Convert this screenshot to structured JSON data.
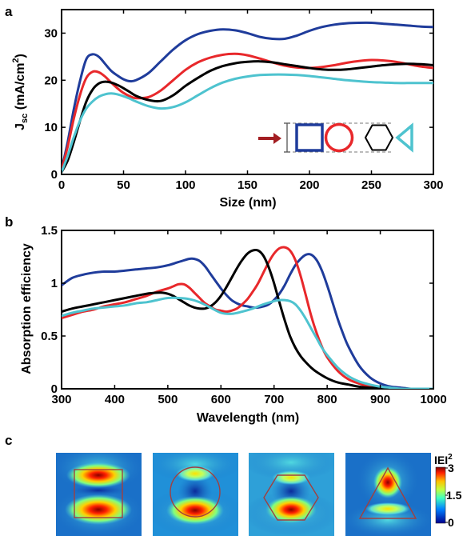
{
  "panel_labels": [
    "a",
    "b",
    "c"
  ],
  "colors": {
    "square": "#1f3c9b",
    "circle": "#e8282b",
    "hexagon": "#000000",
    "triangle": "#4ec3cf",
    "arrow": "#a31e22"
  },
  "chart_data": [
    {
      "panel": "a",
      "type": "line",
      "xlabel": "Size  (nm)",
      "ylabel_main": "J",
      "ylabel_sub": "sc",
      "ylabel_rest": " (mA/cm",
      "ylabel_sup": "2",
      "ylabel_close": ")",
      "xlim": [
        0,
        300
      ],
      "ylim": [
        0,
        35
      ],
      "xticks": [
        "0",
        "50",
        "100",
        "150",
        "200",
        "250",
        "300"
      ],
      "yticks": [
        "0",
        "10",
        "20",
        "30"
      ],
      "grid": false,
      "legend": "inset bottom-right: shape icons (square, circle, hexagon, triangle) with red arrow",
      "series": [
        {
          "shape": "square",
          "color": "#1f3c9b",
          "x": [
            0,
            5,
            10,
            15,
            20,
            25,
            30,
            35,
            40,
            45,
            50,
            55,
            60,
            70,
            80,
            90,
            100,
            110,
            120,
            130,
            140,
            150,
            160,
            170,
            180,
            190,
            200,
            210,
            220,
            230,
            240,
            250,
            260,
            270,
            280,
            290,
            300
          ],
          "y": [
            1,
            7,
            14,
            20,
            24.5,
            25.5,
            25,
            23.5,
            22,
            21,
            20.2,
            19.8,
            20,
            21.5,
            24,
            26.5,
            28.5,
            29.8,
            30.5,
            30.8,
            30.6,
            30,
            29.2,
            28.8,
            28.8,
            29.5,
            30.5,
            31.3,
            31.8,
            32.1,
            32.2,
            32.2,
            32,
            31.8,
            31.6,
            31.4,
            31.3
          ]
        },
        {
          "shape": "circle",
          "color": "#e8282b",
          "x": [
            0,
            5,
            10,
            15,
            20,
            25,
            30,
            35,
            40,
            45,
            50,
            55,
            60,
            70,
            80,
            90,
            100,
            110,
            120,
            130,
            140,
            150,
            160,
            170,
            180,
            190,
            200,
            210,
            220,
            230,
            240,
            250,
            260,
            270,
            280,
            290,
            300
          ],
          "y": [
            1,
            6,
            12,
            17,
            20.5,
            21.8,
            21.7,
            20.8,
            19.5,
            18.3,
            17.3,
            16.6,
            16.2,
            16.4,
            17.8,
            20,
            22.2,
            23.8,
            24.8,
            25.4,
            25.6,
            25.3,
            24.6,
            23.8,
            23.1,
            22.7,
            22.6,
            22.8,
            23.2,
            23.7,
            24.1,
            24.3,
            24.2,
            23.9,
            23.4,
            22.9,
            22.6
          ]
        },
        {
          "shape": "hexagon",
          "color": "#000000",
          "x": [
            0,
            5,
            10,
            15,
            20,
            25,
            30,
            35,
            40,
            45,
            50,
            55,
            60,
            70,
            80,
            90,
            100,
            110,
            120,
            130,
            140,
            150,
            160,
            170,
            180,
            190,
            200,
            210,
            220,
            230,
            240,
            250,
            260,
            270,
            280,
            290,
            300
          ],
          "y": [
            0.5,
            3,
            7,
            11.5,
            15.5,
            18,
            19.3,
            19.7,
            19.5,
            19,
            18.3,
            17.5,
            16.7,
            15.8,
            15.6,
            16.8,
            18.8,
            20.5,
            22,
            23,
            23.6,
            23.9,
            24,
            23.8,
            23.4,
            23,
            22.6,
            22.3,
            22.2,
            22.3,
            22.6,
            22.9,
            23.2,
            23.4,
            23.5,
            23.4,
            23.2
          ]
        },
        {
          "shape": "triangle",
          "color": "#4ec3cf",
          "x": [
            0,
            5,
            10,
            15,
            20,
            25,
            30,
            35,
            40,
            45,
            50,
            55,
            60,
            70,
            80,
            90,
            100,
            110,
            120,
            130,
            140,
            150,
            160,
            170,
            180,
            190,
            200,
            210,
            220,
            230,
            240,
            250,
            260,
            270,
            280,
            290,
            300
          ],
          "y": [
            0.5,
            4,
            8,
            11.5,
            14,
            15.5,
            16.5,
            17,
            17.2,
            17,
            16.6,
            16.1,
            15.5,
            14.5,
            14,
            14.3,
            15.3,
            16.8,
            18.3,
            19.5,
            20.3,
            20.8,
            21.1,
            21.2,
            21.2,
            21.1,
            20.9,
            20.6,
            20.3,
            20,
            19.8,
            19.6,
            19.5,
            19.4,
            19.4,
            19.4,
            19.4
          ]
        }
      ]
    },
    {
      "panel": "b",
      "type": "line",
      "xlabel": "Wavelength  (nm)",
      "ylabel": "Absorption efficiency",
      "xlim": [
        300,
        1000
      ],
      "ylim": [
        0,
        1.5
      ],
      "xticks": [
        "300",
        "400",
        "500",
        "600",
        "700",
        "800",
        "900",
        "1000"
      ],
      "yticks": [
        "0",
        "0.5",
        "1",
        "1.5"
      ],
      "grid": false,
      "series": [
        {
          "shape": "square",
          "color": "#1f3c9b",
          "x": [
            300,
            320,
            340,
            360,
            380,
            400,
            420,
            440,
            460,
            480,
            500,
            520,
            540,
            550,
            560,
            570,
            580,
            590,
            600,
            610,
            620,
            630,
            640,
            650,
            660,
            670,
            680,
            690,
            700,
            710,
            720,
            730,
            740,
            750,
            760,
            770,
            780,
            790,
            800,
            810,
            820,
            830,
            840,
            860,
            880,
            900,
            920,
            940,
            960,
            980,
            1000
          ],
          "y": [
            0.98,
            1.05,
            1.08,
            1.1,
            1.11,
            1.11,
            1.12,
            1.13,
            1.14,
            1.15,
            1.17,
            1.2,
            1.23,
            1.23,
            1.21,
            1.16,
            1.09,
            1.02,
            0.95,
            0.89,
            0.84,
            0.81,
            0.79,
            0.78,
            0.77,
            0.77,
            0.78,
            0.8,
            0.84,
            0.9,
            0.98,
            1.08,
            1.17,
            1.23,
            1.27,
            1.27,
            1.22,
            1.12,
            0.98,
            0.82,
            0.66,
            0.52,
            0.4,
            0.22,
            0.11,
            0.05,
            0.02,
            0.01,
            0,
            0,
            0
          ]
        },
        {
          "shape": "circle",
          "color": "#e8282b",
          "x": [
            300,
            320,
            340,
            360,
            380,
            400,
            420,
            440,
            460,
            480,
            500,
            510,
            520,
            530,
            540,
            550,
            560,
            570,
            580,
            590,
            600,
            610,
            620,
            630,
            640,
            650,
            660,
            670,
            680,
            690,
            700,
            710,
            720,
            730,
            740,
            750,
            760,
            770,
            780,
            790,
            800,
            820,
            840,
            860,
            880,
            900,
            920,
            940,
            960,
            1000
          ],
          "y": [
            0.67,
            0.7,
            0.73,
            0.75,
            0.78,
            0.8,
            0.82,
            0.85,
            0.88,
            0.92,
            0.95,
            0.97,
            0.99,
            0.99,
            0.96,
            0.91,
            0.86,
            0.81,
            0.78,
            0.75,
            0.74,
            0.73,
            0.74,
            0.76,
            0.8,
            0.85,
            0.92,
            1,
            1.1,
            1.2,
            1.28,
            1.33,
            1.34,
            1.31,
            1.22,
            1.07,
            0.88,
            0.69,
            0.53,
            0.4,
            0.3,
            0.17,
            0.09,
            0.05,
            0.02,
            0.01,
            0,
            0,
            0,
            0
          ]
        },
        {
          "shape": "hexagon",
          "color": "#000000",
          "x": [
            300,
            320,
            340,
            360,
            380,
            400,
            420,
            440,
            460,
            480,
            490,
            500,
            510,
            520,
            530,
            540,
            550,
            560,
            570,
            580,
            590,
            600,
            610,
            620,
            630,
            640,
            650,
            660,
            670,
            680,
            690,
            700,
            710,
            720,
            730,
            740,
            750,
            760,
            770,
            780,
            800,
            820,
            840,
            860,
            880,
            900,
            920,
            960,
            1000
          ],
          "y": [
            0.73,
            0.76,
            0.78,
            0.8,
            0.82,
            0.84,
            0.86,
            0.88,
            0.9,
            0.91,
            0.91,
            0.9,
            0.88,
            0.85,
            0.82,
            0.79,
            0.77,
            0.76,
            0.76,
            0.78,
            0.82,
            0.88,
            0.96,
            1.05,
            1.14,
            1.22,
            1.28,
            1.31,
            1.31,
            1.26,
            1.15,
            1,
            0.82,
            0.65,
            0.5,
            0.39,
            0.31,
            0.25,
            0.2,
            0.16,
            0.1,
            0.06,
            0.04,
            0.02,
            0.01,
            0.01,
            0,
            0,
            0
          ]
        },
        {
          "shape": "triangle",
          "color": "#4ec3cf",
          "x": [
            300,
            320,
            340,
            360,
            380,
            400,
            420,
            440,
            460,
            480,
            500,
            520,
            540,
            560,
            580,
            600,
            620,
            640,
            660,
            680,
            700,
            710,
            720,
            730,
            740,
            750,
            760,
            770,
            780,
            790,
            800,
            820,
            840,
            860,
            880,
            900,
            920,
            940,
            960,
            1000
          ],
          "y": [
            0.69,
            0.72,
            0.74,
            0.76,
            0.77,
            0.78,
            0.79,
            0.81,
            0.82,
            0.84,
            0.86,
            0.86,
            0.85,
            0.82,
            0.77,
            0.72,
            0.71,
            0.73,
            0.76,
            0.8,
            0.83,
            0.84,
            0.84,
            0.83,
            0.8,
            0.74,
            0.66,
            0.57,
            0.48,
            0.39,
            0.32,
            0.2,
            0.12,
            0.07,
            0.04,
            0.02,
            0.01,
            0,
            0,
            0
          ]
        }
      ]
    },
    {
      "panel": "c",
      "type": "heatmap",
      "maps": [
        "square",
        "circle",
        "hexagon",
        "triangle"
      ],
      "colorbar_label": "IEI",
      "colorbar_label_sup": "2",
      "colorbar_ticks": [
        "3",
        "1.5",
        "0"
      ],
      "colorbar_range": [
        0,
        3
      ]
    }
  ]
}
